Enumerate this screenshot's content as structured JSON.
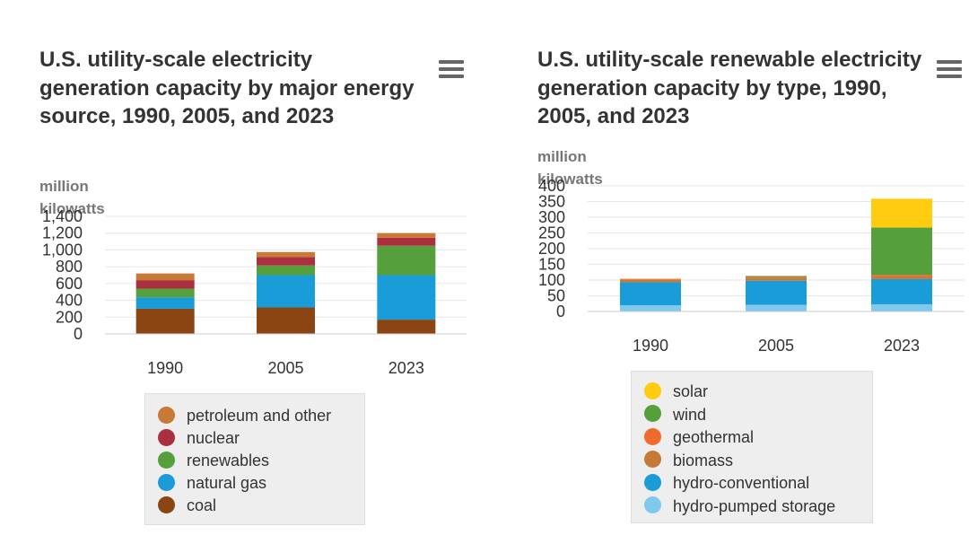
{
  "chart_data": [
    {
      "type": "bar",
      "stacked": true,
      "title": "U.S. utility-scale electricity generation capacity by major energy source, 1990, 2005, and 2023",
      "ylabel": "million kilowatts",
      "xlabel": "",
      "categories": [
        "1990",
        "2005",
        "2023"
      ],
      "ylim": [
        0,
        1400
      ],
      "yticks": [
        0,
        200,
        400,
        600,
        800,
        1000,
        1200,
        1400
      ],
      "ytick_labels": [
        "0",
        "200",
        "400",
        "600",
        "800",
        "1,000",
        "1,200",
        "1,400"
      ],
      "grid": true,
      "legend_position": "bottom",
      "series": [
        {
          "name": "coal",
          "color": "#8B4513",
          "values": [
            300,
            315,
            170
          ]
        },
        {
          "name": "natural gas",
          "color": "#1a9cd8",
          "values": [
            135,
            385,
            530
          ]
        },
        {
          "name": "renewables",
          "color": "#55a03c",
          "values": [
            105,
            115,
            350
          ]
        },
        {
          "name": "nuclear",
          "color": "#ab2f3e",
          "values": [
            100,
            100,
            95
          ]
        },
        {
          "name": "petroleum and other",
          "color": "#c77a35",
          "values": [
            80,
            60,
            55
          ]
        }
      ],
      "legend_order": [
        "petroleum and other",
        "nuclear",
        "renewables",
        "natural gas",
        "coal"
      ]
    },
    {
      "type": "bar",
      "stacked": true,
      "title": "U.S. utility-scale renewable electricity generation capacity by type, 1990, 2005, and 2023",
      "ylabel": "million kilowatts",
      "xlabel": "",
      "categories": [
        "1990",
        "2005",
        "2023"
      ],
      "ylim": [
        0,
        400
      ],
      "yticks": [
        0,
        50,
        100,
        150,
        200,
        250,
        300,
        350,
        400
      ],
      "ytick_labels": [
        "0",
        "50",
        "100",
        "150",
        "200",
        "250",
        "300",
        "350",
        "400"
      ],
      "grid": true,
      "legend_position": "bottom",
      "series": [
        {
          "name": "hydro-pumped storage",
          "color": "#7fc9ee",
          "values": [
            20,
            21,
            23
          ]
        },
        {
          "name": "hydro-conventional",
          "color": "#1a9cd8",
          "values": [
            73,
            77,
            80
          ]
        },
        {
          "name": "biomass",
          "color": "#c77a35",
          "values": [
            9,
            10,
            11
          ]
        },
        {
          "name": "geothermal",
          "color": "#ee6b2b",
          "values": [
            2,
            2,
            3
          ]
        },
        {
          "name": "wind",
          "color": "#55a03c",
          "values": [
            0,
            3,
            150
          ]
        },
        {
          "name": "solar",
          "color": "#ffcc10",
          "values": [
            0,
            0,
            92
          ]
        }
      ],
      "legend_order": [
        "solar",
        "wind",
        "geothermal",
        "biomass",
        "hydro-conventional",
        "hydro-pumped storage"
      ]
    }
  ],
  "colors": {
    "title": "#333333",
    "axis_title": "#777777",
    "gridline": "#e6e6e6",
    "axis_line": "#cccccc",
    "legend_bg": "#eeeeee",
    "menu_icon": "#666666"
  },
  "icons": {
    "menu": "hamburger-menu-icon"
  }
}
